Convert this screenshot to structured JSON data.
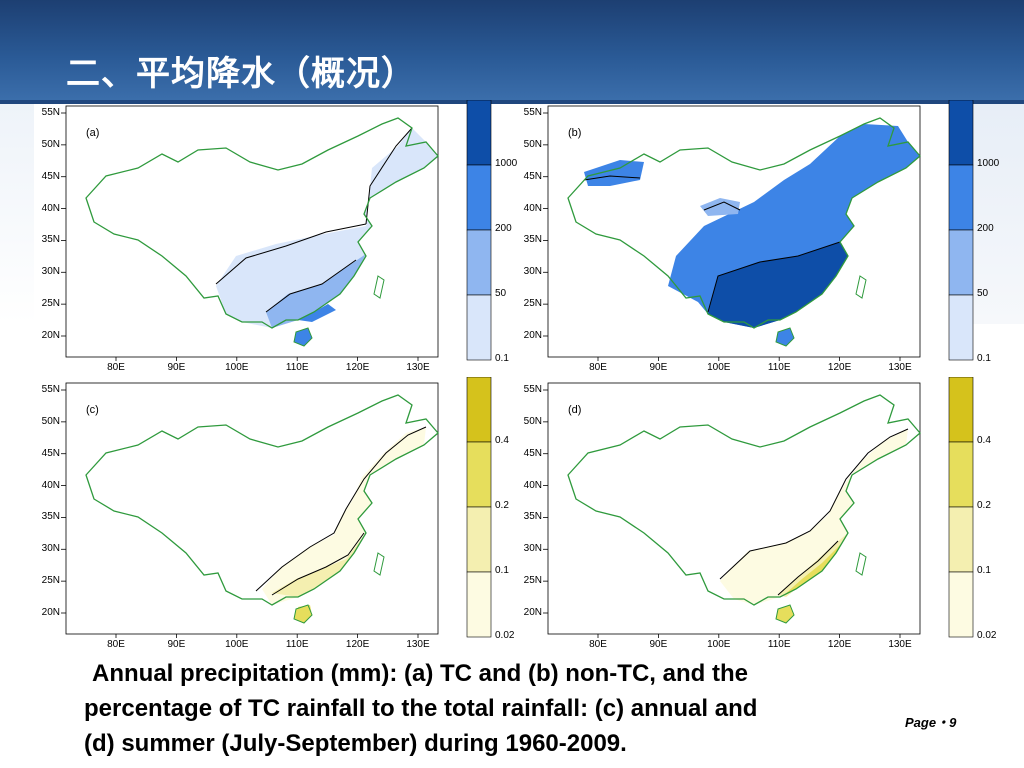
{
  "title": "二、平均降水（概况）",
  "lat_labels": [
    "55N",
    "50N",
    "45N",
    "40N",
    "35N",
    "30N",
    "25N",
    "20N"
  ],
  "lon_labels": [
    "80E",
    "90E",
    "100E",
    "110E",
    "120E",
    "130E"
  ],
  "panels": [
    {
      "label": "(a)",
      "colorbar": "blue"
    },
    {
      "label": "(b)",
      "colorbar": "blue"
    },
    {
      "label": "(c)",
      "colorbar": "yellow"
    },
    {
      "label": "(d)",
      "colorbar": "yellow"
    }
  ],
  "colorbars": {
    "blue": {
      "ticks": [
        "1000",
        "200",
        "50",
        "0.1"
      ],
      "colors": [
        "#0e4ea8",
        "#3d84e6",
        "#8fb6f0",
        "#d9e6fa"
      ]
    },
    "yellow": {
      "ticks": [
        "0.4",
        "0.2",
        "0.1",
        "0.02"
      ],
      "colors": [
        "#d5c21c",
        "#e6de5c",
        "#f4efb0",
        "#fdfbe2"
      ]
    }
  },
  "caption": [
    "Annual precipitation (mm): (a) TC and (b) non-TC, and the",
    "percentage of TC rainfall to the total rainfall: (c) annual and",
    "(d) summer (July-September) during 1960-2009."
  ],
  "page": "Page・9"
}
